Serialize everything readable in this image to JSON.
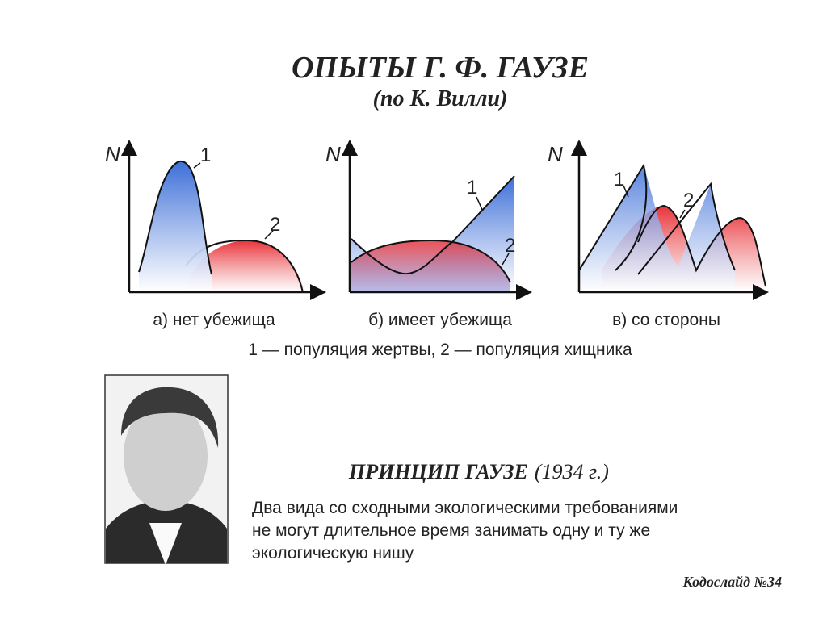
{
  "title": "ОПЫТЫ  Г. Ф. ГАУЗЕ",
  "subtitle": "(по К. Вилли)",
  "panels": [
    {
      "axis_label": "N",
      "curve_labels": [
        "1",
        "2"
      ],
      "caption": "а) нет убежища"
    },
    {
      "axis_label": "N",
      "curve_labels": [
        "1",
        "2"
      ],
      "caption": "б) имеет убежища"
    },
    {
      "axis_label": "N",
      "curve_labels": [
        "1",
        "2"
      ],
      "caption": "в) со стороны"
    }
  ],
  "legend": "1 — популяция жертвы, 2 — популяция хищника",
  "principle": {
    "title": "ПРИНЦИП ГАУЗЕ",
    "year": "(1934 г.)",
    "text_lines": [
      "Два вида со сходными экологическими требованиями",
      "не могут длительное время занимать одну и ту же",
      "экологическую нишу"
    ]
  },
  "footer": "Кодослайд №34"
}
